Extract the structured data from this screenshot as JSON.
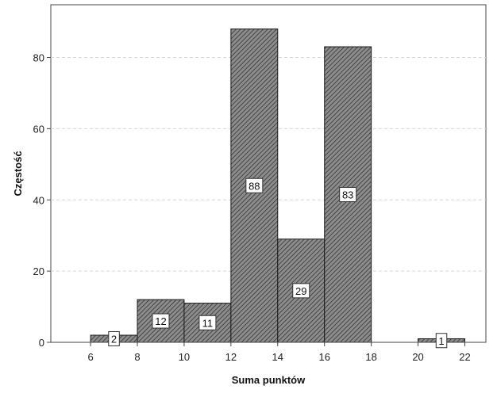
{
  "chart_data": {
    "type": "bar",
    "title": "",
    "xlabel": "Suma punktów",
    "ylabel": "Częstość",
    "bins": [
      {
        "x0": 6,
        "x1": 8,
        "value": 2,
        "label": "2"
      },
      {
        "x0": 8,
        "x1": 10,
        "value": 12,
        "label": "12"
      },
      {
        "x0": 10,
        "x1": 12,
        "value": 11,
        "label": "11"
      },
      {
        "x0": 12,
        "x1": 14,
        "value": 88,
        "label": "88"
      },
      {
        "x0": 14,
        "x1": 16,
        "value": 29,
        "label": "29"
      },
      {
        "x0": 16,
        "x1": 18,
        "value": 83,
        "label": "83"
      },
      {
        "x0": 20,
        "x1": 22,
        "value": 1,
        "label": "1"
      }
    ],
    "xticks": [
      6,
      8,
      10,
      12,
      14,
      16,
      18,
      20,
      22
    ],
    "xtick_labels": [
      "6",
      "8",
      "10",
      "12",
      "14",
      "16",
      "18",
      "20",
      "22"
    ],
    "yticks": [
      0,
      20,
      40,
      60,
      80
    ],
    "ytick_labels": [
      "0",
      "20",
      "40",
      "60",
      "80"
    ],
    "xlim": [
      4.3,
      22.9
    ],
    "ylim": [
      0,
      94.8
    ],
    "grid": "horizontal-dashed",
    "bar_fill": "#8c8c8c",
    "hatch_color": "#333333",
    "bar_stroke": "#1a1a1a"
  }
}
